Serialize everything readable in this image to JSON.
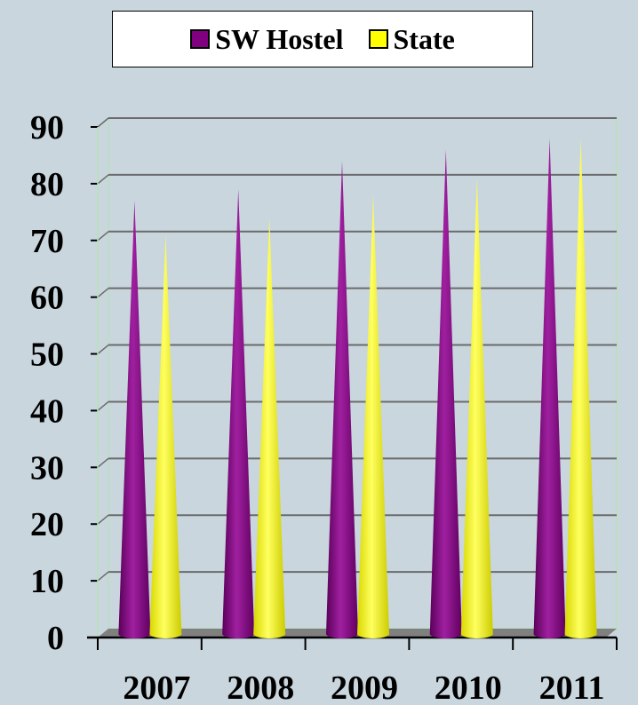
{
  "legend": {
    "series1": "SW Hostel",
    "series2": "State"
  },
  "colors": {
    "series1": "#800080",
    "series2": "#ffff00",
    "background": "#c9d6de"
  },
  "chart_data": {
    "type": "bar",
    "bar_shape": "cone",
    "categories": [
      "2007",
      "2008",
      "2009",
      "2010",
      "2011"
    ],
    "series": [
      {
        "name": "SW Hostel",
        "values": [
          77,
          79,
          84,
          86,
          88
        ]
      },
      {
        "name": "State",
        "values": [
          71,
          74,
          78,
          81,
          88
        ]
      }
    ],
    "ylim": [
      0,
      90
    ],
    "yticks": [
      0,
      10,
      20,
      30,
      40,
      50,
      60,
      70,
      80,
      90
    ],
    "grid": true,
    "legend_position": "top"
  }
}
